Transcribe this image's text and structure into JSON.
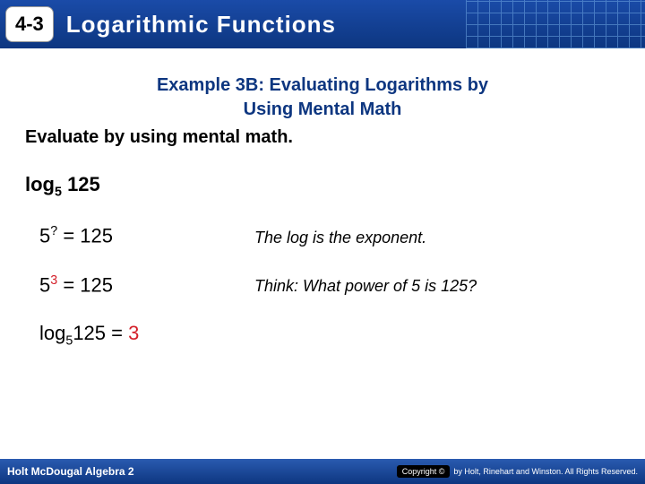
{
  "header": {
    "section_number": "4-3",
    "title": "Logarithmic Functions",
    "bg_gradient_top": "#1a4ba8",
    "bg_gradient_bottom": "#0d3680"
  },
  "content": {
    "example_title_line1": "Example 3B: Evaluating Logarithms by",
    "example_title_line2": "Using Mental Math",
    "instruction": "Evaluate by using mental math.",
    "problem_prefix": "log",
    "problem_sub": "5",
    "problem_arg": " 125",
    "step1_base": "5",
    "step1_exp": "?",
    "step1_eq": " = 125",
    "step1_note": "The log is the exponent.",
    "step2_base": "5",
    "step2_exp": "3",
    "step2_eq": " = 125",
    "step2_note": "Think: What power of 5 is 125?",
    "answer_prefix": "log",
    "answer_sub": "5",
    "answer_arg": "125 = ",
    "answer_val": "3"
  },
  "footer": {
    "left": "Holt McDougal Algebra 2",
    "copyright_label": "Copyright ©",
    "rights": "by Holt, Rinehart and Winston. All Rights Reserved."
  },
  "colors": {
    "title_color": "#0d3680",
    "answer_color": "#d4202a",
    "text_color": "#000000"
  }
}
